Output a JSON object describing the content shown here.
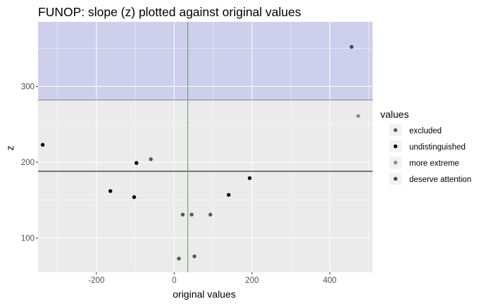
{
  "chart_data": {
    "type": "scatter",
    "title": "FUNOP: slope (z) plotted against original values",
    "xlabel": "original values",
    "ylabel": "z",
    "xlim": [
      -350,
      510
    ],
    "ylim": [
      55,
      385
    ],
    "x_ticks": [
      -200,
      0,
      200,
      400
    ],
    "y_ticks": [
      100,
      200,
      300
    ],
    "x_tick_labels": [
      "-200",
      "0",
      "200",
      "400"
    ],
    "y_tick_labels": [
      "100",
      "200",
      "300"
    ],
    "grid": true,
    "shaded_region": {
      "y_from": 282,
      "y_to": 385,
      "color": "#cecfec"
    },
    "hline": {
      "y": 188,
      "color": "#000000"
    },
    "hline_upper": {
      "y": 282,
      "color": "#7f7f7f"
    },
    "vline": {
      "x": 35,
      "color": "#6d9a6d"
    },
    "legend": {
      "title": "values",
      "position": "right",
      "entries": [
        {
          "label": "excluded",
          "color": "#3d6b3d"
        },
        {
          "label": "undistinguished",
          "color": "#000000"
        },
        {
          "label": "more extreme",
          "color": "#6e9e80"
        },
        {
          "label": "deserve attention",
          "color": "#3f4f45"
        }
      ]
    },
    "series": [
      {
        "name": "excluded",
        "color": "#3d6b3d",
        "points": [
          {
            "x": -60,
            "y": 204
          },
          {
            "x": 22,
            "y": 131
          },
          {
            "x": 45,
            "y": 131
          },
          {
            "x": 93,
            "y": 131
          },
          {
            "x": 12,
            "y": 73
          },
          {
            "x": 52,
            "y": 76
          }
        ]
      },
      {
        "name": "undistinguished",
        "color": "#000000",
        "points": [
          {
            "x": -338,
            "y": 223
          },
          {
            "x": -97,
            "y": 199
          },
          {
            "x": -164,
            "y": 162
          },
          {
            "x": -103,
            "y": 154
          },
          {
            "x": 140,
            "y": 157
          },
          {
            "x": 194,
            "y": 179
          }
        ]
      },
      {
        "name": "more extreme",
        "color": "#6e9e80",
        "points": [
          {
            "x": 473,
            "y": 261
          }
        ]
      },
      {
        "name": "deserve attention",
        "color": "#3f4f45",
        "points": [
          {
            "x": 456,
            "y": 352
          }
        ]
      }
    ]
  }
}
